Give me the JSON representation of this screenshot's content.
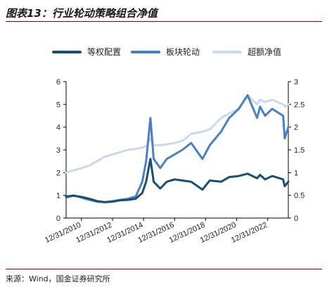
{
  "figure": {
    "title": "图表13：行业轮动策略组合净值",
    "source": "来源：Wind，国金证券研究所"
  },
  "chart_data": {
    "type": "line",
    "title": "",
    "dual_axis": true,
    "x_tick_labels": [
      "12/31/2010",
      "12/31/2012",
      "12/31/2014",
      "12/31/2016",
      "12/31/2018",
      "12/31/2020",
      "12/31/2022"
    ],
    "x_range": [
      "2010-01-04",
      "2024-04-30"
    ],
    "y_left": {
      "range": [
        0,
        6
      ],
      "ticks": [
        "0",
        "1",
        "2",
        "3",
        "4",
        "5",
        "6"
      ]
    },
    "y_right": {
      "range": [
        0,
        3
      ],
      "ticks": [
        "0",
        "0.5",
        "1",
        "1.5",
        "2",
        "2.5",
        "3"
      ]
    },
    "grid": false,
    "legend_position": "top",
    "series": [
      {
        "name": "等权配置",
        "axis": "left",
        "color": "#1b4f72",
        "x": [
          "2010-01-04",
          "2010-07-01",
          "2011-01-04",
          "2011-07-01",
          "2012-01-04",
          "2012-07-02",
          "2013-01-04",
          "2013-07-01",
          "2014-01-02",
          "2014-07-01",
          "2014-12-01",
          "2015-03-02",
          "2015-06-12",
          "2015-08-26",
          "2016-01-28",
          "2016-07-01",
          "2017-01-03",
          "2017-07-03",
          "2018-01-24",
          "2018-10-18",
          "2019-04-08",
          "2019-12-31",
          "2020-07-06",
          "2021-02-18",
          "2021-09-13",
          "2022-04-26",
          "2022-07-05",
          "2022-10-31",
          "2023-04-17",
          "2023-12-29",
          "2024-02-05",
          "2024-04-30"
        ],
        "values": [
          0.95,
          0.98,
          0.93,
          0.85,
          0.75,
          0.7,
          0.72,
          0.78,
          0.8,
          0.85,
          1.1,
          1.6,
          2.6,
          1.6,
          1.3,
          1.6,
          1.7,
          1.65,
          1.6,
          1.25,
          1.65,
          1.6,
          1.8,
          1.85,
          1.95,
          1.75,
          1.9,
          1.7,
          1.85,
          1.7,
          1.4,
          1.6
        ]
      },
      {
        "name": "板块轮动",
        "axis": "left",
        "color": "#4a7fc0",
        "x": [
          "2010-01-04",
          "2010-07-01",
          "2011-01-04",
          "2011-07-01",
          "2012-01-04",
          "2012-07-02",
          "2013-01-04",
          "2013-07-01",
          "2014-01-02",
          "2014-07-01",
          "2014-12-01",
          "2015-03-02",
          "2015-06-12",
          "2015-08-26",
          "2016-01-28",
          "2016-07-01",
          "2017-01-03",
          "2017-07-03",
          "2018-01-24",
          "2018-10-18",
          "2019-04-08",
          "2019-12-31",
          "2020-07-06",
          "2021-02-18",
          "2021-09-13",
          "2022-04-26",
          "2022-07-05",
          "2022-10-31",
          "2023-04-17",
          "2023-12-29",
          "2024-02-05",
          "2024-04-30"
        ],
        "values": [
          0.9,
          1.0,
          0.9,
          0.8,
          0.72,
          0.7,
          0.75,
          0.8,
          0.85,
          0.95,
          1.6,
          2.5,
          4.4,
          2.6,
          2.2,
          2.6,
          2.8,
          3.0,
          3.3,
          2.6,
          3.2,
          3.8,
          4.4,
          4.8,
          5.4,
          4.4,
          4.9,
          4.5,
          4.8,
          4.5,
          3.5,
          4.0
        ]
      },
      {
        "name": "超额净值",
        "axis": "right",
        "color": "#c9daf0",
        "x": [
          "2010-01-04",
          "2010-07-01",
          "2011-01-04",
          "2011-07-01",
          "2012-01-04",
          "2012-07-02",
          "2013-01-04",
          "2013-07-01",
          "2014-01-02",
          "2014-07-01",
          "2014-12-01",
          "2015-03-02",
          "2015-06-12",
          "2015-08-26",
          "2016-01-28",
          "2016-07-01",
          "2017-01-03",
          "2017-07-03",
          "2018-01-24",
          "2018-10-18",
          "2019-04-08",
          "2019-12-31",
          "2020-07-06",
          "2021-02-18",
          "2021-09-13",
          "2022-04-26",
          "2022-07-05",
          "2022-10-31",
          "2023-04-17",
          "2023-12-29",
          "2024-02-05",
          "2024-04-30"
        ],
        "values": [
          1.0,
          1.05,
          1.1,
          1.15,
          1.25,
          1.35,
          1.4,
          1.45,
          1.5,
          1.52,
          1.55,
          1.58,
          1.75,
          1.6,
          1.6,
          1.62,
          1.65,
          1.7,
          1.85,
          1.9,
          1.95,
          2.2,
          2.3,
          2.4,
          2.7,
          2.5,
          2.6,
          2.55,
          2.6,
          2.5,
          2.45,
          2.5
        ]
      }
    ]
  }
}
